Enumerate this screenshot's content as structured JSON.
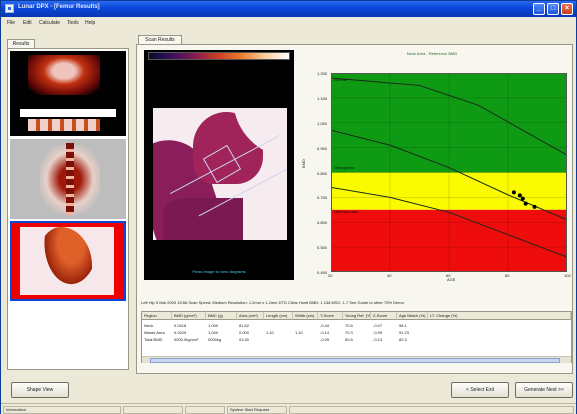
{
  "window": {
    "title": "Lunar DPX - [Femur Results]"
  },
  "menu": [
    "File",
    "Edit",
    "Calculate",
    "Tools",
    "Help"
  ],
  "left_tab": "Results",
  "scan_tab": "Scan Results",
  "scan": {
    "caption": "Press image to view diagrams"
  },
  "graph": {
    "title": "Neck Area - Reference BMD",
    "ylabel": "BMD",
    "xlabel": "AGE",
    "zones": {
      "normal": "Normal",
      "osteopenia": "Osteopenia",
      "osteoporosis": "Osteoporosis"
    },
    "colors": {
      "normal": "#0f9a14",
      "osteopenia": "#fbfb00",
      "osteoporosis": "#ee0c0c"
    }
  },
  "chart_data": {
    "type": "scatter",
    "title": "Neck Area - Reference BMD",
    "xlabel": "AGE",
    "ylabel": "BMD",
    "xlim": [
      20,
      100
    ],
    "ylim": [
      0.45,
      1.25
    ],
    "x_ticks": [
      "20",
      "40",
      "60",
      "80",
      "100"
    ],
    "y_ticks": [
      "1.250",
      "1.150",
      "1.050",
      "0.950",
      "0.850",
      "0.750",
      "0.650",
      "0.550",
      "0.450"
    ],
    "bands": [
      {
        "name": "Normal",
        "from": 0.85,
        "to": 1.25,
        "color": "#0f9a14"
      },
      {
        "name": "Osteopenia",
        "from": 0.7,
        "to": 0.85,
        "color": "#fbfb00"
      },
      {
        "name": "Osteoporosis",
        "from": 0.45,
        "to": 0.7,
        "color": "#ee0c0c"
      }
    ],
    "reference_lines": [
      {
        "x": [
          20,
          50,
          70,
          100
        ],
        "y": [
          1.23,
          1.2,
          1.12,
          0.92
        ]
      },
      {
        "x": [
          20,
          40,
          60,
          80,
          100
        ],
        "y": [
          1.02,
          0.96,
          0.87,
          0.76,
          0.66
        ]
      },
      {
        "x": [
          20,
          40,
          60,
          80,
          100
        ],
        "y": [
          0.79,
          0.75,
          0.69,
          0.6,
          0.51
        ]
      }
    ],
    "points": {
      "x": [
        82,
        84,
        85,
        86,
        89
      ],
      "y": [
        0.77,
        0.758,
        0.745,
        0.725,
        0.712
      ]
    },
    "grid": true,
    "legend": "none"
  },
  "info": "Left Hip   5 Mar 2003  15:56  Scan Speed: Medium  Resolution: 1.2mm x 1.2mm   DTD Clinic Huntl BMD: 1.138 MSC: 1.7  See Guide to other 75%  Demo",
  "results": {
    "headers": [
      "Region",
      "BMD (g/cm²)",
      "BMC (g)",
      "Area (cm²)",
      "Length (cm)",
      "Width (cm)",
      "T-Score",
      "Young Ref. (%)",
      "Z-Score",
      "Age Match (%)",
      "LT. Change (%)"
    ],
    "rows": [
      [
        "Neck",
        "0.0418",
        "1.090",
        "81.62",
        "",
        "",
        "-0.44",
        "70.5",
        "-0.07",
        "98.1",
        ""
      ],
      [
        "Wards Area",
        "0.0425",
        "1.040",
        "0.000",
        "1.10",
        "1.10",
        "-0.14",
        "70.3",
        "-0.09",
        "91.23",
        ""
      ],
      [
        "Total BMD",
        "0000.0kg/cm²",
        "0000kg",
        "03.30",
        "",
        "",
        "-0.09",
        "69.5",
        "-0.13",
        "82.3",
        ""
      ]
    ]
  },
  "buttons": {
    "view_image": "Shape View",
    "prev": "< Select Exit",
    "next": "Generate Next >>"
  },
  "status": [
    "Information",
    "",
    "",
    "System Start Request",
    ""
  ]
}
